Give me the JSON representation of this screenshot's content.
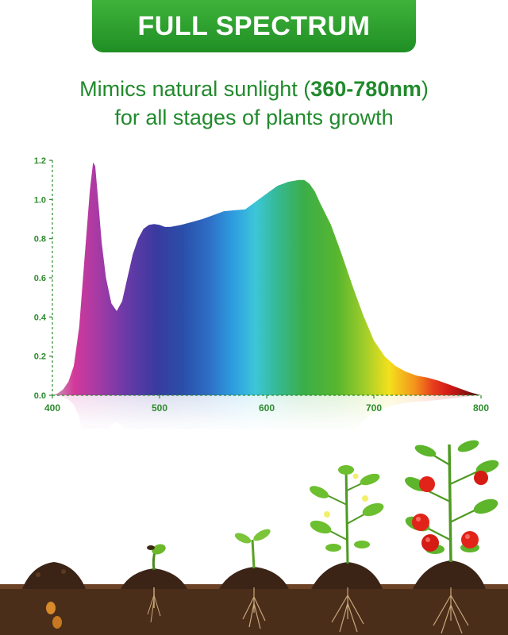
{
  "banner": {
    "title": "FULL SPECTRUM"
  },
  "subtitle": {
    "line1_prefix": "Mimics natural sunlight (",
    "line1_highlight": "360-780nm",
    "line1_suffix": ")",
    "line2": "for all stages of plants growth"
  },
  "colors": {
    "brand_green": "#2a9a2e",
    "text_green": "#218a2c",
    "axis_green": "#2e8b2e",
    "soil": "#4a2e1a"
  },
  "chart_data": {
    "type": "area",
    "title": "",
    "xlabel": "",
    "ylabel": "",
    "xlim": [
      400,
      800
    ],
    "ylim": [
      0,
      1.2
    ],
    "x_ticks": [
      "400",
      "500",
      "600",
      "700",
      "800"
    ],
    "y_ticks": [
      "0.0",
      "0.2",
      "0.4",
      "0.6",
      "0.8",
      "1.0",
      "1.2"
    ],
    "grid": false,
    "series": [
      {
        "x": [
          400,
          405,
          410,
          415,
          420,
          425,
          430,
          435,
          438,
          440,
          443,
          446,
          450,
          455,
          460,
          465,
          470,
          475,
          480,
          485,
          490,
          495,
          500,
          505,
          510,
          515,
          520,
          530,
          540,
          550,
          560,
          570,
          580,
          590,
          600,
          610,
          620,
          630,
          635,
          640,
          645,
          650,
          660,
          670,
          680,
          690,
          700,
          710,
          720,
          730,
          740,
          750,
          760,
          770,
          780,
          790,
          800
        ],
        "y": [
          0.0,
          0.01,
          0.03,
          0.07,
          0.15,
          0.35,
          0.7,
          1.05,
          1.19,
          1.17,
          0.98,
          0.78,
          0.6,
          0.47,
          0.43,
          0.48,
          0.6,
          0.72,
          0.8,
          0.85,
          0.87,
          0.875,
          0.87,
          0.86,
          0.86,
          0.865,
          0.87,
          0.885,
          0.9,
          0.92,
          0.94,
          0.945,
          0.95,
          0.99,
          1.03,
          1.07,
          1.09,
          1.1,
          1.1,
          1.08,
          1.04,
          0.98,
          0.87,
          0.72,
          0.56,
          0.41,
          0.28,
          0.2,
          0.15,
          0.12,
          0.1,
          0.09,
          0.075,
          0.055,
          0.035,
          0.015,
          0.0
        ]
      }
    ]
  },
  "scene": {
    "stages": [
      "seed",
      "sprout",
      "seedling",
      "young-plant",
      "fruiting-plant"
    ]
  }
}
